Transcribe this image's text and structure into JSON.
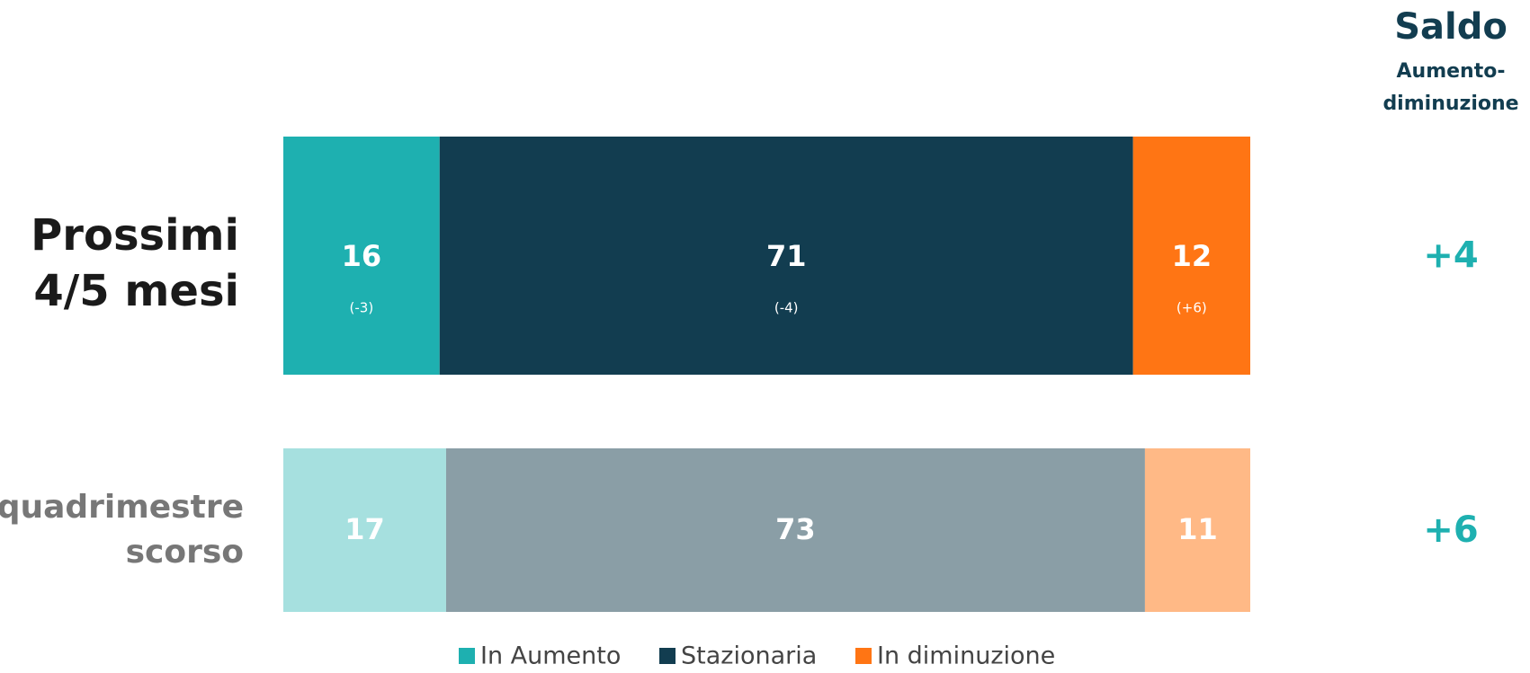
{
  "chart_data": {
    "type": "stacked-bar-horizontal",
    "categories": [
      [
        "Prossimi",
        "4/5 mesi"
      ],
      [
        "quadrimestre",
        "scorso"
      ]
    ],
    "series": [
      {
        "name": "In Aumento",
        "color": "#1eb0b0",
        "colors": [
          "#1eb0b0",
          "#a6e0df"
        ],
        "values": [
          16,
          17
        ],
        "change_labels": [
          "(-3)",
          null
        ]
      },
      {
        "name": "Stazionaria",
        "color": "#123d50",
        "colors": [
          "#123d50",
          "#8a9ea6"
        ],
        "values": [
          71,
          73
        ],
        "change_labels": [
          "(-4)",
          null
        ]
      },
      {
        "name": "In diminuzione",
        "color": "#ff7514",
        "colors": [
          "#ff7514",
          "#ffb986"
        ],
        "values": [
          12,
          11
        ],
        "change_labels": [
          "(+6)",
          null
        ]
      }
    ],
    "saldo": {
      "title": "Saldo",
      "subtitle": [
        "Aumento-",
        "diminuzione"
      ],
      "values": [
        4,
        6
      ],
      "value_labels": [
        "+4",
        "+6"
      ],
      "color": "#1eb0b0"
    }
  }
}
